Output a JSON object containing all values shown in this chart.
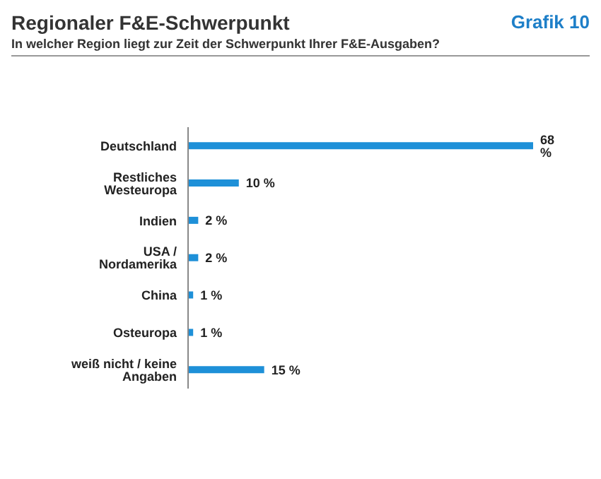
{
  "chart_data": {
    "type": "bar",
    "orientation": "horizontal",
    "title": "Regionaler F&E-Schwerpunkt",
    "subtitle": "In welcher Region liegt zur Zeit der Schwerpunkt Ihrer F&E-Ausgaben?",
    "annotations": [
      "Grafik 10"
    ],
    "categories": [
      "Deutschland",
      "Restliches Westeuropa",
      "Indien",
      "USA / Nordamerika",
      "China",
      "Osteuropa",
      "weiß nicht / keine Angaben"
    ],
    "values": [
      68,
      10,
      2,
      2,
      1,
      1,
      15
    ],
    "value_labels": [
      "68 %",
      "10 %",
      "2 %",
      "2 %",
      "1 %",
      "1 %",
      "15 %"
    ],
    "color": "#1e90d8",
    "grid": false,
    "legend": false
  }
}
